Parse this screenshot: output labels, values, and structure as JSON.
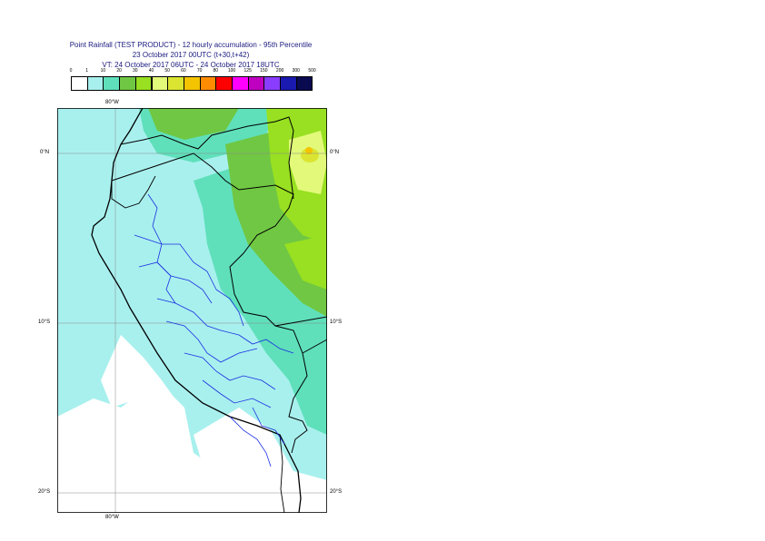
{
  "title": {
    "line1": "Point Rainfall (TEST PRODUCT) - 12 hourly accumulation - 95th Percentile",
    "line2": "23 October 2017 00UTC (t+30,t+42)",
    "line3": "VT: 24 October 2017 06UTC - 24 October 2017 18UTC"
  },
  "colorbar": {
    "ticks": [
      "0",
      "1",
      "10",
      "20",
      "30",
      "40",
      "50",
      "60",
      "70",
      "80",
      "100",
      "125",
      "150",
      "200",
      "300",
      "500"
    ],
    "colors": [
      "#ffffff",
      "#a8f0ee",
      "#5fe0bb",
      "#70c743",
      "#98e021",
      "#e2f97a",
      "#dbe531",
      "#f5c400",
      "#ff8c00",
      "#ff0000",
      "#ff00ff",
      "#c000c0",
      "#8a3dff",
      "#1a1ab0",
      "#090a50"
    ]
  },
  "map": {
    "lon_labels_top": [
      "80°W"
    ],
    "lon_labels_bottom": [
      "80°W"
    ],
    "lat_labels_left": [
      "0°N",
      "10°S",
      "20°S"
    ],
    "lat_labels_right": [
      "0°N",
      "10°S",
      "20°S"
    ]
  }
}
